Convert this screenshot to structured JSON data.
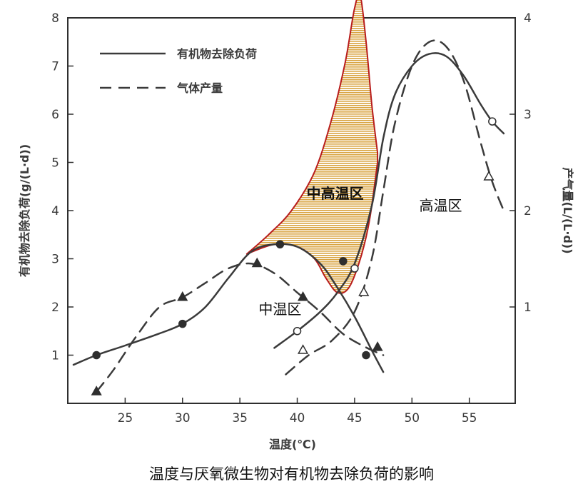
{
  "caption": "温度与厌氧微生物对有机物去除负荷的影响",
  "chart_data": {
    "type": "line",
    "xlabel": "温度(℃)",
    "ylabel_left": "有机物去除负荷(g/(L·d))",
    "ylabel_right": "产气量(L/(L·d))",
    "xlim": [
      20,
      59
    ],
    "ylim_left": [
      0,
      8
    ],
    "ylim_right": [
      0,
      4
    ],
    "x_ticks": [
      25,
      30,
      35,
      40,
      45,
      50,
      55
    ],
    "y_left_ticks": [
      1,
      2,
      3,
      4,
      5,
      6,
      7,
      8
    ],
    "y_right_ticks": [
      1,
      2,
      3,
      4
    ],
    "grid": false,
    "legend_position": "top-left",
    "legend": [
      "有机物去除负荷",
      "气体产量"
    ],
    "series": [
      {
        "name": "有机物去除负荷",
        "axis": "left",
        "style": "solid",
        "segments": [
          [
            [
              20.5,
              0.8
            ],
            [
              22.5,
              1.0
            ],
            [
              25,
              1.2
            ],
            [
              28,
              1.45
            ],
            [
              30,
              1.65
            ],
            [
              32,
              2.0
            ],
            [
              34,
              2.6
            ],
            [
              36,
              3.15
            ],
            [
              38,
              3.3
            ],
            [
              40,
              3.25
            ],
            [
              42,
              2.9
            ],
            [
              43.5,
              2.4
            ],
            [
              45,
              1.8
            ],
            [
              46.5,
              1.1
            ],
            [
              47.5,
              0.65
            ]
          ],
          [
            [
              38,
              1.15
            ],
            [
              40,
              1.5
            ],
            [
              42,
              1.9
            ],
            [
              43.5,
              2.3
            ],
            [
              45,
              2.9
            ],
            [
              46.5,
              4.1
            ],
            [
              47.5,
              5.5
            ],
            [
              48.5,
              6.4
            ],
            [
              50,
              7.0
            ],
            [
              51.5,
              7.25
            ],
            [
              53,
              7.2
            ],
            [
              54.5,
              6.8
            ],
            [
              56,
              6.2
            ],
            [
              57,
              5.85
            ],
            [
              58,
              5.6
            ]
          ]
        ],
        "points": [
          [
            22.5,
            1.0
          ],
          [
            30,
            1.65
          ],
          [
            38.5,
            3.3
          ],
          [
            44,
            2.95
          ],
          [
            46,
            1.0
          ],
          [
            40,
            1.5
          ],
          [
            45,
            2.8
          ],
          [
            57,
            5.85
          ]
        ]
      },
      {
        "name": "气体产量",
        "axis": "right",
        "style": "dashed",
        "segments": [
          [
            [
              22.5,
              0.12
            ],
            [
              24,
              0.35
            ],
            [
              26,
              0.7
            ],
            [
              28,
              1.0
            ],
            [
              30,
              1.1
            ],
            [
              32,
              1.25
            ],
            [
              34,
              1.4
            ],
            [
              36,
              1.45
            ],
            [
              38,
              1.35
            ],
            [
              40,
              1.15
            ],
            [
              42,
              0.95
            ],
            [
              44,
              0.72
            ],
            [
              46,
              0.58
            ],
            [
              47.5,
              0.5
            ]
          ],
          [
            [
              39,
              0.3
            ],
            [
              41,
              0.5
            ],
            [
              43,
              0.65
            ],
            [
              45,
              0.95
            ],
            [
              46.5,
              1.5
            ],
            [
              47.5,
              2.2
            ],
            [
              48.5,
              2.9
            ],
            [
              50,
              3.5
            ],
            [
              51.5,
              3.75
            ],
            [
              53,
              3.7
            ],
            [
              54.5,
              3.35
            ],
            [
              56,
              2.7
            ],
            [
              57,
              2.3
            ],
            [
              58,
              2.0
            ]
          ]
        ],
        "points": [
          [
            22.5,
            0.12
          ],
          [
            30,
            1.1
          ],
          [
            36.5,
            1.45
          ],
          [
            40.5,
            1.1
          ],
          [
            47,
            0.58
          ],
          [
            40.5,
            0.55
          ],
          [
            45.8,
            1.15
          ],
          [
            56.7,
            2.35
          ]
        ]
      }
    ],
    "annotations": [
      {
        "label": "中温区",
        "x": 38.5,
        "y": 1.85
      },
      {
        "label": "中高温区",
        "x": 43.3,
        "y": 4.25,
        "highlight": true
      },
      {
        "label": "高温区",
        "x": 52.5,
        "y": 4.0
      }
    ],
    "highlight_region": {
      "label": "中高温区",
      "fill": "#d9a441",
      "border": "#b81c1c",
      "upper": [
        [
          35.6,
          3.1
        ],
        [
          37.5,
          3.5
        ],
        [
          39.5,
          4.0
        ],
        [
          41.5,
          4.8
        ],
        [
          43,
          5.9
        ],
        [
          44.2,
          7.1
        ],
        [
          45,
          8.2
        ],
        [
          45.5,
          8.45
        ],
        [
          46,
          7.5
        ],
        [
          46.5,
          6.2
        ],
        [
          47,
          5.2
        ]
      ],
      "lower": [
        [
          47,
          5.0
        ],
        [
          46.3,
          3.8
        ],
        [
          45.5,
          3.0
        ],
        [
          44.5,
          2.4
        ],
        [
          43.5,
          2.3
        ],
        [
          42.5,
          2.6
        ],
        [
          41.5,
          3.0
        ],
        [
          40,
          3.25
        ],
        [
          38,
          3.3
        ],
        [
          35.6,
          3.1
        ]
      ]
    },
    "colors": {
      "line": "#3a3a3a",
      "axis": "#2e2e2e",
      "highlight_fill": "#d9a441",
      "highlight_border": "#b81c1c"
    }
  }
}
